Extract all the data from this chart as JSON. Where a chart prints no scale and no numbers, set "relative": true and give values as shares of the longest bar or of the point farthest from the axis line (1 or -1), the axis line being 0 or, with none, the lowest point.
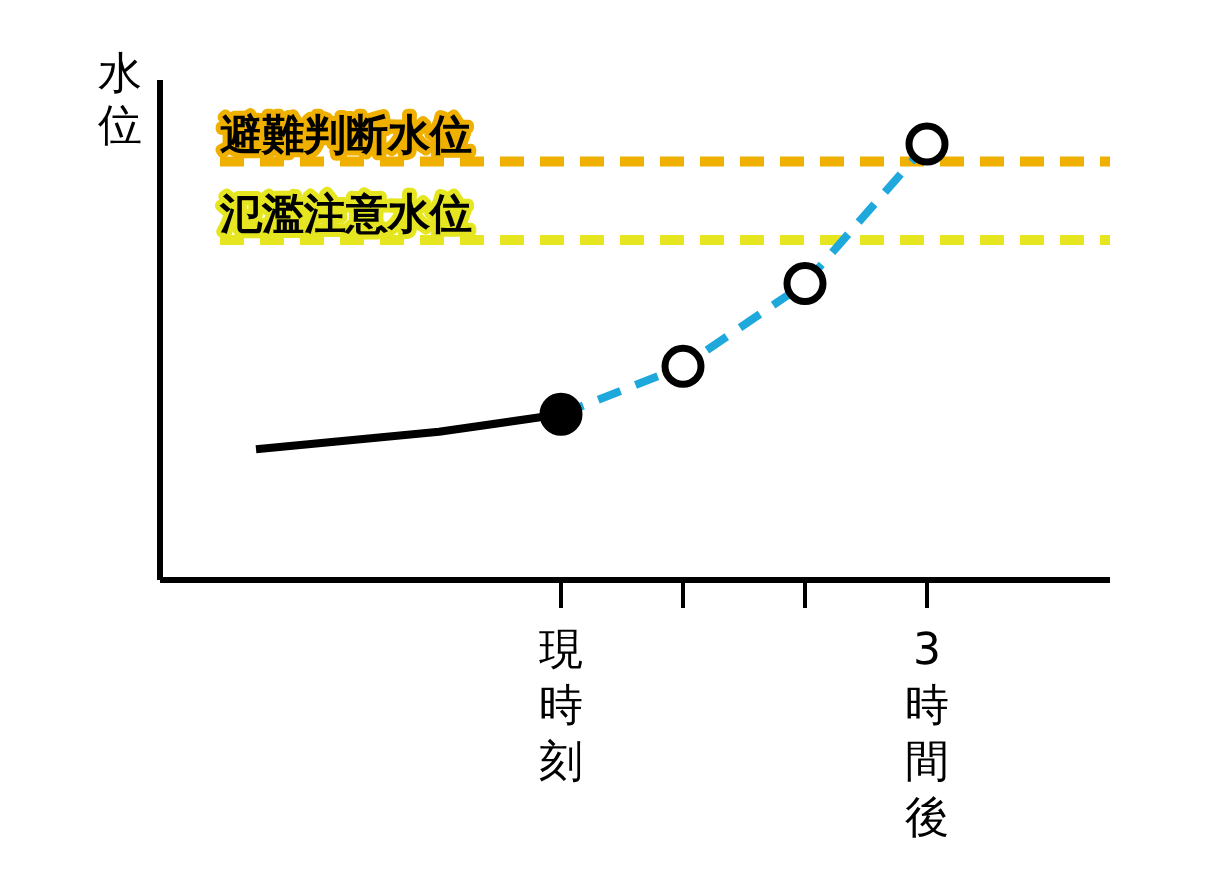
{
  "chart_data": {
    "type": "line",
    "relative": true,
    "ylabel": "水位",
    "categories": [
      null,
      null,
      null,
      null,
      null,
      "現時刻",
      null,
      null,
      null,
      null,
      null,
      "3時間後"
    ],
    "grid": false,
    "legend": false,
    "series": [
      {
        "color": "#000000",
        "values": [
          0.3,
          null,
          null,
          0.34,
          null,
          0.38,
          null,
          null,
          null,
          null,
          null,
          null
        ],
        "line_style": "solid",
        "marker": "none"
      },
      {
        "color": "#1ea8dc",
        "values": [
          null,
          null,
          null,
          null,
          null,
          0.38,
          null,
          0.49,
          null,
          0.68,
          null,
          1
        ],
        "line_style": "dashed",
        "marker": "none"
      },
      {
        "type": "scatter",
        "color": "#000000",
        "values": [
          null,
          null,
          null,
          null,
          null,
          0.38,
          null,
          null,
          null,
          null,
          null,
          null
        ],
        "marker": "circle"
      },
      {
        "type": "scatter",
        "color": "#ffffff",
        "values": [
          null,
          null,
          null,
          null,
          null,
          null,
          null,
          0.49,
          null,
          0.68,
          null,
          1
        ],
        "marker": "circle"
      }
    ],
    "ref_lines": [
      {
        "axis": "y",
        "value": 0.96,
        "label": "避難判断水位",
        "color": "#f0b000",
        "line_style": "dashed"
      },
      {
        "axis": "y",
        "value": 0.78,
        "label": "氾濫注意水位",
        "color": "#e6e620",
        "line_style": "dashed"
      }
    ]
  }
}
